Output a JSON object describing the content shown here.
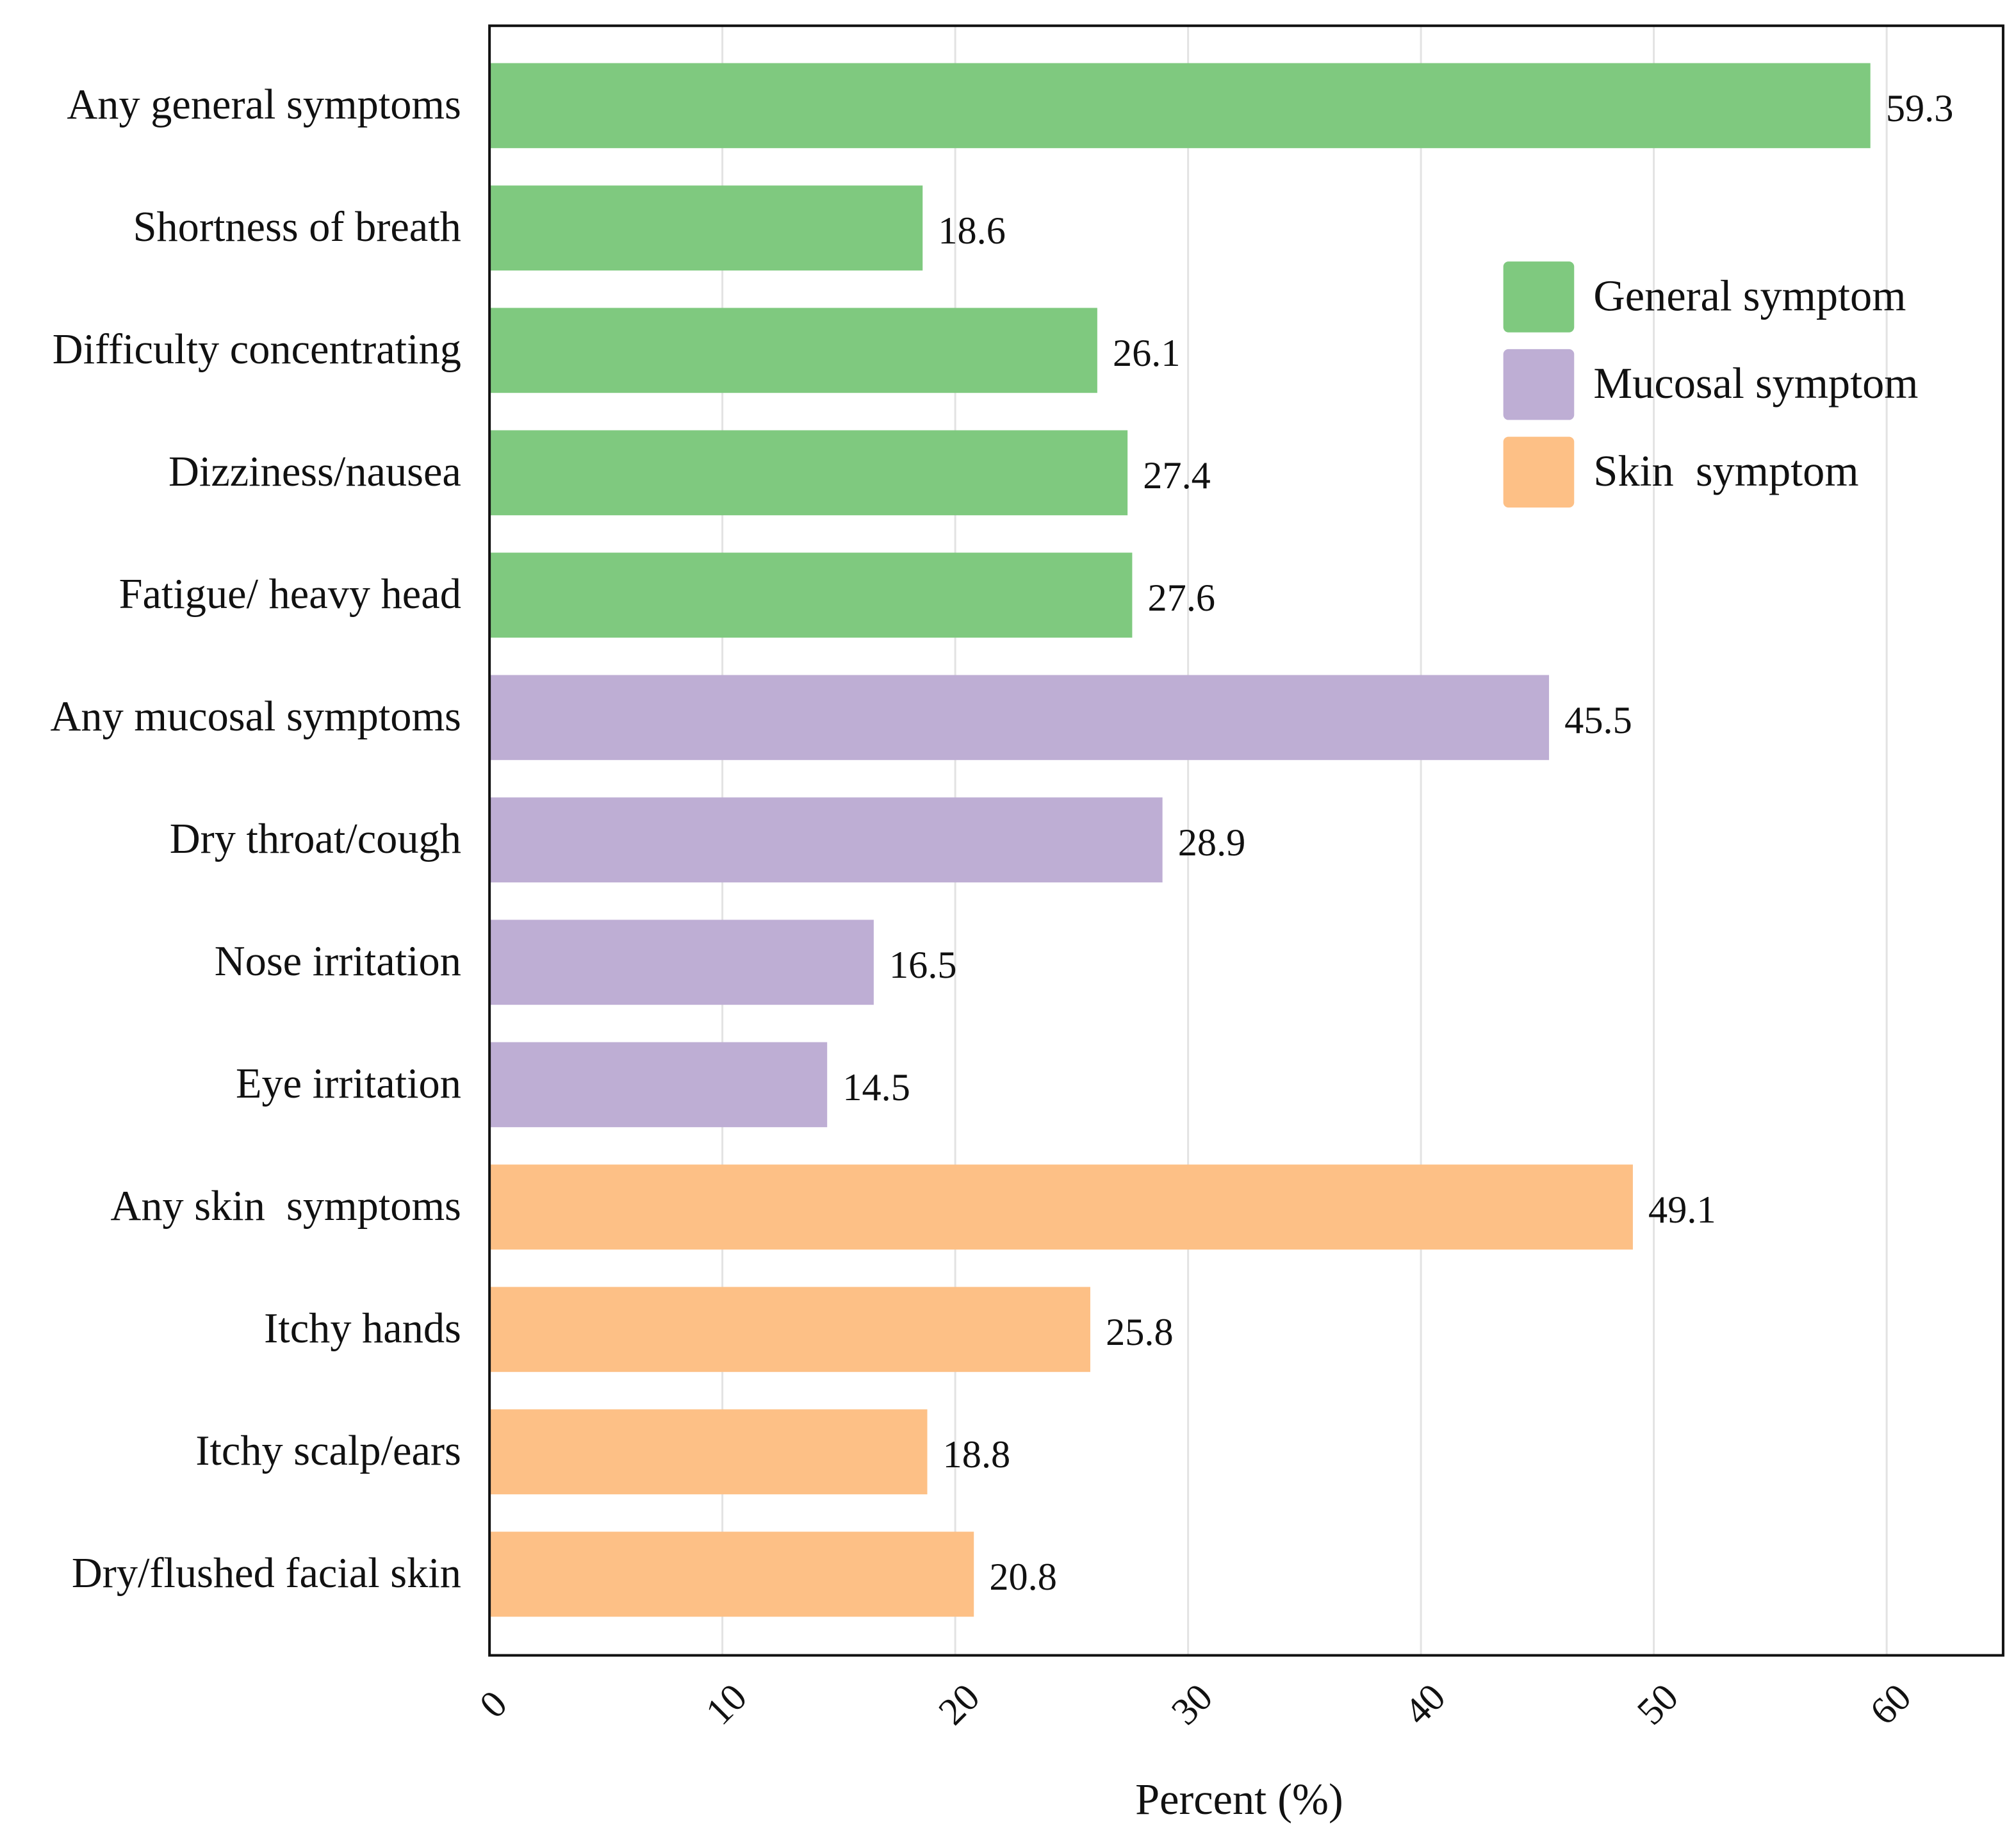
{
  "chart_data": {
    "type": "hbar",
    "x_label": "Percent (%)",
    "categories": [
      "Any general symptoms",
      "Shortness of breath",
      "Difficulty concentrating",
      "Dizziness/nausea",
      "Fatigue/ heavy head",
      "Any mucosal symptoms",
      "Dry throat/cough",
      "Nose irritation",
      "Eye irritation",
      "Any skin  symptoms",
      "Itchy hands",
      "Itchy scalp/ears",
      "Dry/flushed facial skin"
    ],
    "series": [
      {
        "name": "General symptom",
        "color": "#7fc97f",
        "values": [
          59.3,
          18.6,
          26.1,
          27.4,
          27.6,
          null,
          null,
          null,
          null,
          null,
          null,
          null,
          null
        ]
      },
      {
        "name": "Mucosal symptom",
        "color": "#beaed4",
        "values": [
          null,
          null,
          null,
          null,
          null,
          45.5,
          28.9,
          16.5,
          14.5,
          null,
          null,
          null,
          null
        ]
      },
      {
        "name": "Skin  symptom",
        "color": "#fdc086",
        "values": [
          null,
          null,
          null,
          null,
          null,
          null,
          null,
          null,
          null,
          49.1,
          25.8,
          18.8,
          20.8
        ]
      }
    ],
    "xlim": [
      0,
      65
    ],
    "xticks": [
      0,
      10,
      20,
      30,
      40,
      50,
      60
    ],
    "grid": true,
    "legend_position": "upper right"
  }
}
